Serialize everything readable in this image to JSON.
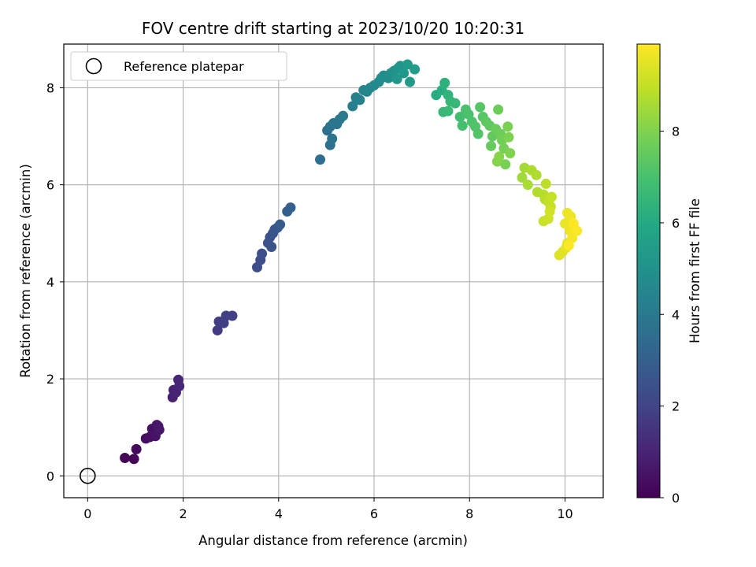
{
  "chart_data": {
    "type": "scatter",
    "title": "FOV centre drift starting at 2023/10/20 10:20:31",
    "xlabel": "Angular distance from reference (arcmin)",
    "ylabel": "Rotation from reference (arcmin)",
    "xlim": [
      -0.5,
      10.8
    ],
    "ylim": [
      -0.45,
      8.9
    ],
    "xticks": [
      "0",
      "2",
      "4",
      "6",
      "8",
      "10"
    ],
    "yticks": [
      "0",
      "2",
      "4",
      "6",
      "8"
    ],
    "grid": true,
    "legend": {
      "position": "top-left",
      "label": "Reference platepar"
    },
    "reference_point": {
      "x": 0,
      "y": 0
    },
    "colorbar": {
      "label": "Hours from first FF file",
      "range": [
        0,
        9.9
      ],
      "ticks": [
        "0",
        "2",
        "4",
        "6",
        "8"
      ],
      "colormap": "viridis"
    },
    "series": [
      {
        "points": [
          [
            0.78,
            0.37,
            0.1
          ],
          [
            0.97,
            0.35,
            0.15
          ],
          [
            1.02,
            0.55,
            0.25
          ],
          [
            1.22,
            0.77,
            0.35
          ],
          [
            1.3,
            0.8,
            0.4
          ],
          [
            1.35,
            0.97,
            0.45
          ],
          [
            1.42,
            0.82,
            0.5
          ],
          [
            1.45,
            1.05,
            0.55
          ],
          [
            1.5,
            0.95,
            0.6
          ],
          [
            1.48,
            1.02,
            0.65
          ],
          [
            1.78,
            1.62,
            0.9
          ],
          [
            1.8,
            1.77,
            0.95
          ],
          [
            1.85,
            1.72,
            1.0
          ],
          [
            1.9,
            1.98,
            1.05
          ],
          [
            1.92,
            1.85,
            1.1
          ],
          [
            2.72,
            3.0,
            1.7
          ],
          [
            2.75,
            3.18,
            1.75
          ],
          [
            2.85,
            3.15,
            1.8
          ],
          [
            2.9,
            3.3,
            1.85
          ],
          [
            3.03,
            3.3,
            1.9
          ],
          [
            3.55,
            4.3,
            2.3
          ],
          [
            3.62,
            4.45,
            2.35
          ],
          [
            3.65,
            4.58,
            2.4
          ],
          [
            3.78,
            4.8,
            2.45
          ],
          [
            3.82,
            4.92,
            2.5
          ],
          [
            3.85,
            4.72,
            2.55
          ],
          [
            3.88,
            5.0,
            2.6
          ],
          [
            3.92,
            5.08,
            2.65
          ],
          [
            3.98,
            5.12,
            2.7
          ],
          [
            4.03,
            5.18,
            2.75
          ],
          [
            4.18,
            5.45,
            2.95
          ],
          [
            4.25,
            5.53,
            3.0
          ],
          [
            4.87,
            6.52,
            3.55
          ],
          [
            5.02,
            7.12,
            3.65
          ],
          [
            5.08,
            6.82,
            3.7
          ],
          [
            5.12,
            6.95,
            3.75
          ],
          [
            5.08,
            7.2,
            3.8
          ],
          [
            5.15,
            7.27,
            3.85
          ],
          [
            5.22,
            7.25,
            3.9
          ],
          [
            5.28,
            7.35,
            3.95
          ],
          [
            5.35,
            7.42,
            4.0
          ],
          [
            5.55,
            7.62,
            4.2
          ],
          [
            5.62,
            7.8,
            4.3
          ],
          [
            5.7,
            7.75,
            4.35
          ],
          [
            5.78,
            7.95,
            4.45
          ],
          [
            5.85,
            7.92,
            4.5
          ],
          [
            5.92,
            8.0,
            4.55
          ],
          [
            6.0,
            8.05,
            4.6
          ],
          [
            6.1,
            8.12,
            4.7
          ],
          [
            6.15,
            8.2,
            4.75
          ],
          [
            6.2,
            8.25,
            4.8
          ],
          [
            6.3,
            8.2,
            4.85
          ],
          [
            6.35,
            8.3,
            4.9
          ],
          [
            6.42,
            8.35,
            4.95
          ],
          [
            6.5,
            8.4,
            5.05
          ],
          [
            6.55,
            8.45,
            5.1
          ],
          [
            6.48,
            8.18,
            5.15
          ],
          [
            6.62,
            8.3,
            5.25
          ],
          [
            6.7,
            8.48,
            5.35
          ],
          [
            6.75,
            8.12,
            5.4
          ],
          [
            6.85,
            8.38,
            5.5
          ],
          [
            7.3,
            7.85,
            6.1
          ],
          [
            7.42,
            7.95,
            6.2
          ],
          [
            7.48,
            8.1,
            6.3
          ],
          [
            7.55,
            7.85,
            6.4
          ],
          [
            7.6,
            7.72,
            6.5
          ],
          [
            7.7,
            7.68,
            6.55
          ],
          [
            7.45,
            7.5,
            6.6
          ],
          [
            7.55,
            7.52,
            6.65
          ],
          [
            7.8,
            7.4,
            6.9
          ],
          [
            7.85,
            7.22,
            6.95
          ],
          [
            7.92,
            7.55,
            7.0
          ],
          [
            7.98,
            7.45,
            7.05
          ],
          [
            8.05,
            7.3,
            7.1
          ],
          [
            8.12,
            7.2,
            7.15
          ],
          [
            8.18,
            7.05,
            7.2
          ],
          [
            8.22,
            7.6,
            7.25
          ],
          [
            8.28,
            7.4,
            7.3
          ],
          [
            8.35,
            7.3,
            7.4
          ],
          [
            8.42,
            7.22,
            7.45
          ],
          [
            8.48,
            7.0,
            7.5
          ],
          [
            8.45,
            6.8,
            7.55
          ],
          [
            8.55,
            7.15,
            7.6
          ],
          [
            8.6,
            7.55,
            7.65
          ],
          [
            8.65,
            7.05,
            7.7
          ],
          [
            8.68,
            6.92,
            7.75
          ],
          [
            8.72,
            6.75,
            7.8
          ],
          [
            8.75,
            6.42,
            7.85
          ],
          [
            8.8,
            7.2,
            7.9
          ],
          [
            8.82,
            6.98,
            7.95
          ],
          [
            8.85,
            6.65,
            8.0
          ],
          [
            8.58,
            6.48,
            8.05
          ],
          [
            8.62,
            6.58,
            8.1
          ],
          [
            9.1,
            6.15,
            8.5
          ],
          [
            9.15,
            6.35,
            8.55
          ],
          [
            9.22,
            6.0,
            8.6
          ],
          [
            9.3,
            6.3,
            8.65
          ],
          [
            9.4,
            6.2,
            8.7
          ],
          [
            9.42,
            5.85,
            8.75
          ],
          [
            9.55,
            5.8,
            8.8
          ],
          [
            9.58,
            5.7,
            8.85
          ],
          [
            9.6,
            6.02,
            8.9
          ],
          [
            9.65,
            5.65,
            8.95
          ],
          [
            9.7,
            5.55,
            9.0
          ],
          [
            9.72,
            5.75,
            9.05
          ],
          [
            9.55,
            5.25,
            9.1
          ],
          [
            9.65,
            5.3,
            9.15
          ],
          [
            9.68,
            5.45,
            9.2
          ],
          [
            9.88,
            4.55,
            9.4
          ],
          [
            9.95,
            4.62,
            9.45
          ],
          [
            10.02,
            4.7,
            9.5
          ],
          [
            10.05,
            4.8,
            9.55
          ],
          [
            10.0,
            5.2,
            9.6
          ],
          [
            10.05,
            5.42,
            9.62
          ],
          [
            10.12,
            5.35,
            9.65
          ],
          [
            10.1,
            5.05,
            9.7
          ],
          [
            10.15,
            4.9,
            9.75
          ],
          [
            10.2,
            5.05,
            9.8
          ],
          [
            10.25,
            5.05,
            9.85
          ],
          [
            10.08,
            4.75,
            9.88
          ],
          [
            10.18,
            5.2,
            9.9
          ]
        ]
      }
    ]
  }
}
